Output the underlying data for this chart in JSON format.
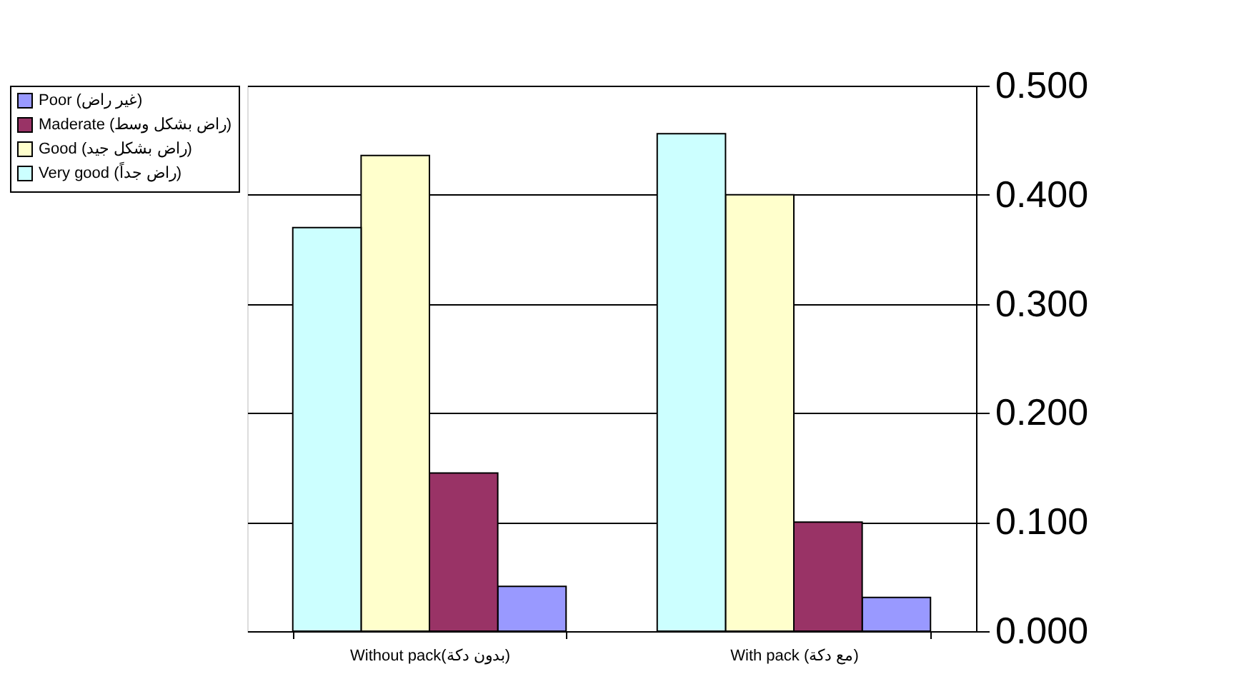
{
  "chart_data": {
    "type": "bar",
    "categories": [
      "Without pack(بدون دكة)",
      "With pack (مع دكة)"
    ],
    "series": [
      {
        "name": "Poor (غير راض)",
        "color": "#9999ff",
        "values": [
          0.041,
          0.031
        ]
      },
      {
        "name": "Maderate (راض بشكل وسط)",
        "color": "#993366",
        "values": [
          0.145,
          0.1
        ]
      },
      {
        "name": "Good (راض بشكل جيد)",
        "color": "#ffffcc",
        "values": [
          0.436,
          0.4
        ]
      },
      {
        "name": "Very good (راض جداً)",
        "color": "#ccffff",
        "values": [
          0.37,
          0.456
        ]
      }
    ],
    "ylim": [
      0,
      0.5
    ],
    "yticks": [
      {
        "value": 0,
        "label": "0.000"
      },
      {
        "value": 0.1,
        "label": "0.100"
      },
      {
        "value": 0.2,
        "label": "0.200"
      },
      {
        "value": 0.3,
        "label": "0.300"
      },
      {
        "value": 0.4,
        "label": "0.400"
      },
      {
        "value": 0.5,
        "label": "0.500"
      }
    ],
    "grid": "y",
    "legend": "left"
  }
}
